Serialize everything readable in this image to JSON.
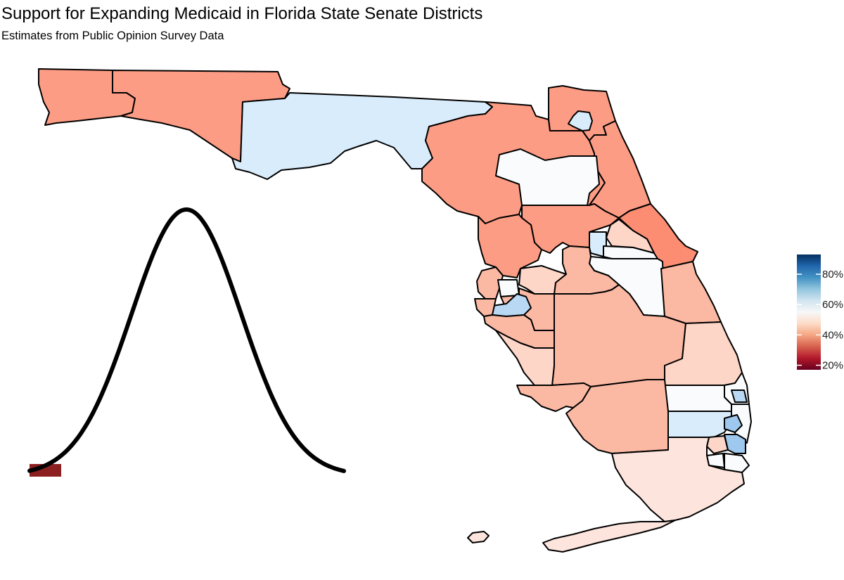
{
  "title": "Support for Expanding Medicaid in Florida State Senate Districts",
  "subtitle": "Estimates from Public Opinion Survey Data",
  "legend": {
    "ticks": [
      "20%",
      "40%",
      "60%",
      "80%"
    ],
    "range": [
      0.17,
      0.93
    ],
    "colors": [
      "#67001f",
      "#b2182b",
      "#d6604d",
      "#f4a582",
      "#fddbc7",
      "#f7f7f7",
      "#d1e5f0",
      "#92c5de",
      "#4393c3",
      "#2166ac",
      "#053061"
    ]
  },
  "colors": {
    "strong_red": "#fc8d73",
    "red": "#fd9c84",
    "light_red": "#fbb9a4",
    "pale_red": "#fdd6c8",
    "very_pale_red": "#fde4dc",
    "white": "#f9fbfd",
    "pale_blue": "#d9ecfb",
    "light_blue": "#b8d8f3",
    "blue": "#9ec8ee",
    "dark_red": "#8c2020"
  },
  "distribution_curve": {
    "shape": "normal",
    "marker_value": 0.2
  }
}
